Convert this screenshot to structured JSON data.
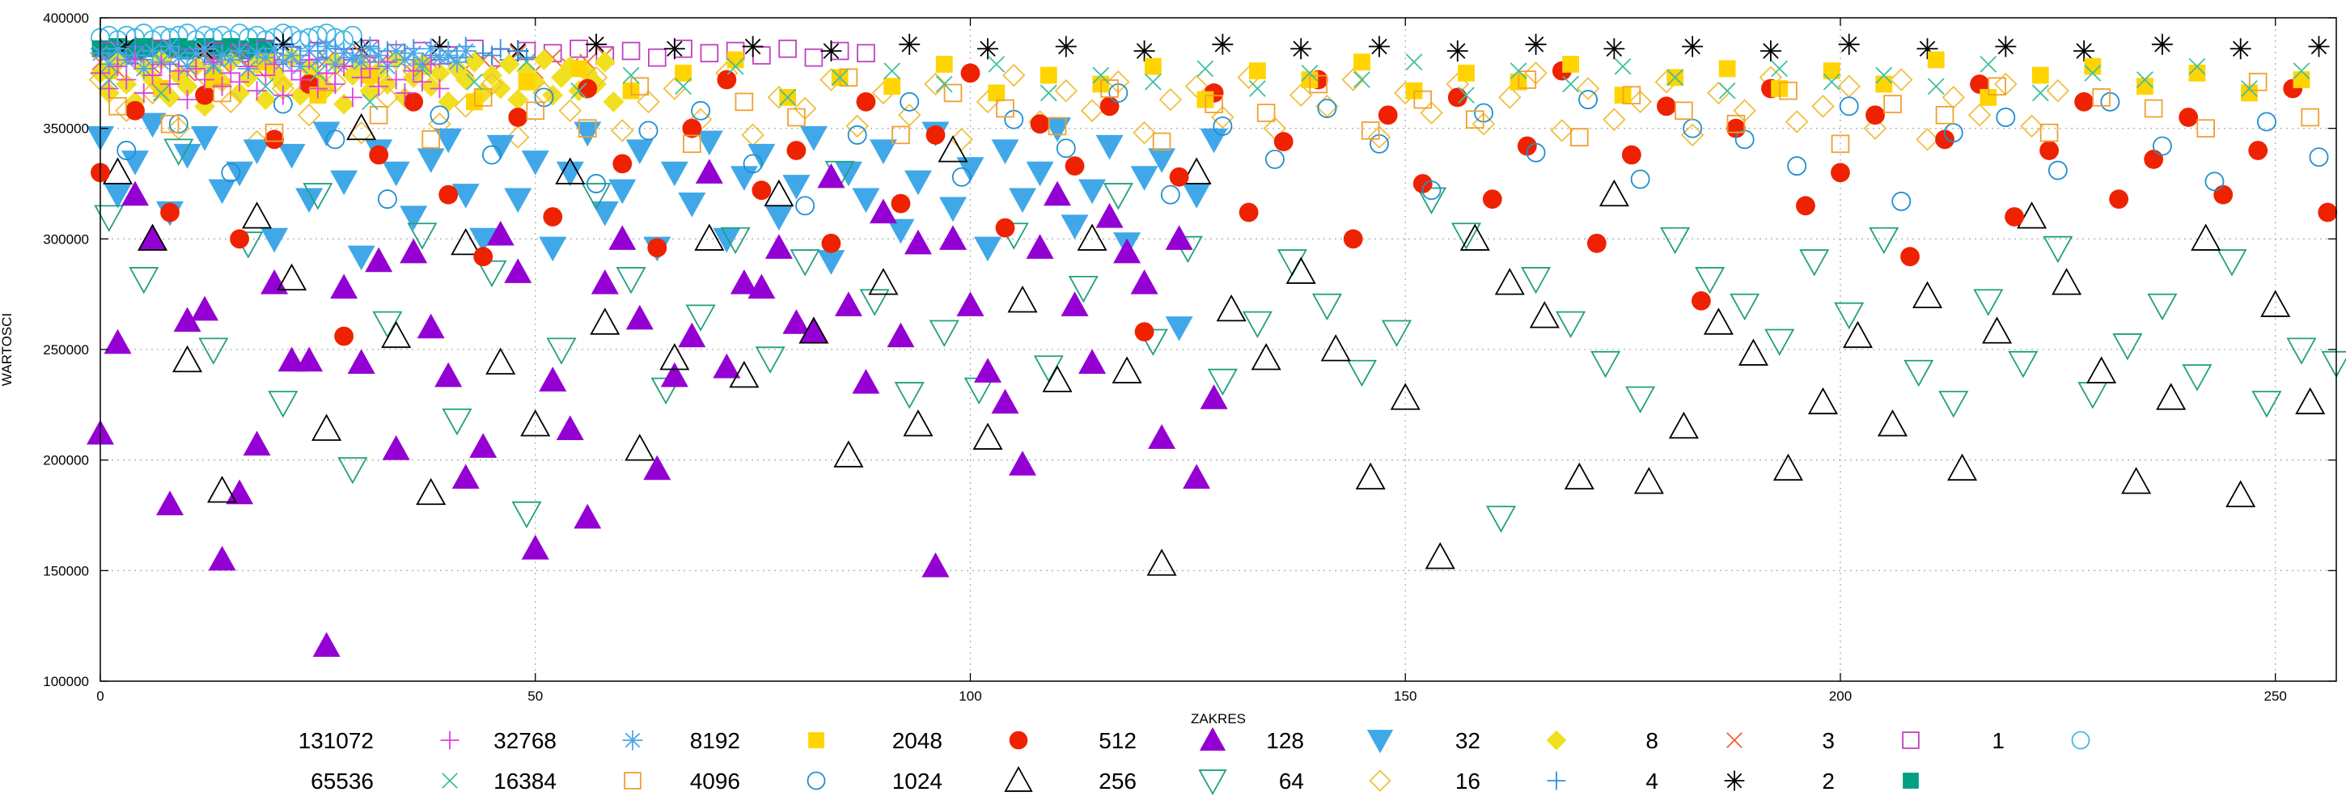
{
  "chart_data": {
    "type": "scatter",
    "xlabel": "ZAKRES",
    "ylabel": "WARTOSCI",
    "xlim": [
      0,
      257
    ],
    "ylim": [
      100000,
      400000
    ],
    "x_ticks": [
      0,
      50,
      100,
      150,
      200,
      250
    ],
    "y_ticks": [
      100000,
      150000,
      200000,
      250000,
      300000,
      350000,
      400000
    ],
    "grid": true,
    "legend_placement": "bottom",
    "series": [
      {
        "name": "131072",
        "marker": "plus",
        "color": "#e040e0",
        "x_start": 0,
        "x_step": 1,
        "values": [
          375000,
          368000,
          378000,
          372000,
          381000,
          366000,
          374000,
          379000,
          370000,
          376000,
          363000,
          377000,
          372000,
          380000,
          369000,
          375000,
          371000,
          378000,
          367000,
          374000,
          379000,
          365000,
          376000,
          372000,
          381000,
          368000,
          375000,
          370000,
          378000,
          364000,
          373000,
          377000,
          369000,
          380000,
          372000,
          366000,
          376000,
          371000,
          379000,
          368000
        ]
      },
      {
        "name": "65536",
        "marker": "cross",
        "color": "#40c0a0",
        "x_start": 1,
        "x_step": 6,
        "values": [
          372000,
          366000,
          378000,
          369000,
          375000,
          362000,
          377000,
          371000,
          380000,
          367000,
          374000,
          369000,
          378000,
          364000,
          373000,
          376000,
          370000,
          379000,
          366000,
          374000,
          371000,
          377000,
          368000,
          375000,
          372000,
          380000,
          365000,
          376000,
          370000,
          378000,
          373000,
          367000,
          377000,
          371000,
          374000,
          369000,
          379000,
          366000,
          375000,
          372000,
          378000,
          368000,
          376000
        ]
      },
      {
        "name": "32768",
        "marker": "star",
        "color": "#4aa8e8",
        "x_start": 0,
        "x_step": 1,
        "values": [
          384000,
          379000,
          386000,
          381000,
          383000,
          377000,
          385000,
          380000,
          387000,
          382000,
          378000,
          384000,
          386000,
          379000,
          383000,
          381000,
          385000,
          377000,
          384000,
          382000,
          386000,
          380000,
          383000,
          378000,
          385000,
          381000,
          387000,
          379000,
          384000,
          382000,
          380000,
          386000,
          383000,
          378000,
          385000,
          381000,
          384000,
          379000,
          386000,
          382000,
          383000,
          380000,
          385000
        ]
      },
      {
        "name": "16384",
        "marker": "square-open",
        "color": "#f0a030",
        "x_start": 2,
        "x_step": 6,
        "values": [
          360000,
          352000,
          366000,
          348000,
          371000,
          356000,
          345000,
          364000,
          358000,
          350000,
          369000,
          343000,
          362000,
          355000,
          373000,
          347000,
          366000,
          359000,
          351000,
          368000,
          344000,
          361000,
          357000,
          370000,
          349000,
          363000,
          354000,
          372000,
          346000,
          365000,
          358000,
          352000,
          367000,
          343000,
          361000,
          356000,
          369000,
          348000,
          364000,
          359000,
          350000,
          371000,
          355000
        ]
      },
      {
        "name": "8192",
        "marker": "square",
        "color": "#ffd400",
        "x_start": 1,
        "x_step": 6,
        "values": [
          376000,
          368000,
          372000,
          380000,
          365000,
          374000,
          378000,
          362000,
          371000,
          377000,
          367000,
          375000,
          381000,
          364000,
          373000,
          369000,
          379000,
          366000,
          374000,
          370000,
          378000,
          363000,
          376000,
          372000,
          380000,
          367000,
          375000,
          371000,
          379000,
          365000,
          373000,
          377000,
          368000,
          376000,
          370000,
          381000,
          364000,
          374000,
          378000,
          369000,
          375000,
          366000,
          372000
        ]
      },
      {
        "name": "4096",
        "marker": "circle-open",
        "color": "#1f8fd0",
        "x_start": 3,
        "x_step": 6,
        "values": [
          340000,
          352000,
          330000,
          361000,
          345000,
          318000,
          356000,
          338000,
          364000,
          325000,
          349000,
          358000,
          334000,
          315000,
          347000,
          362000,
          328000,
          354000,
          341000,
          366000,
          320000,
          351000,
          336000,
          359000,
          343000,
          322000,
          357000,
          339000,
          363000,
          327000,
          350000,
          345000,
          333000,
          360000,
          317000,
          348000,
          355000,
          331000,
          362000,
          342000,
          326000,
          353000,
          337000
        ]
      },
      {
        "name": "2048",
        "marker": "circle",
        "color": "#ee2200",
        "x_start": 0,
        "x_step": 4,
        "values": [
          330000,
          358000,
          312000,
          365000,
          300000,
          345000,
          370000,
          256000,
          338000,
          362000,
          320000,
          292000,
          355000,
          310000,
          368000,
          334000,
          296000,
          350000,
          372000,
          322000,
          340000,
          298000,
          362000,
          316000,
          347000,
          375000,
          305000,
          352000,
          333000,
          360000,
          258000,
          328000,
          366000,
          312000,
          344000,
          372000,
          300000,
          356000,
          325000,
          364000,
          318000,
          342000,
          376000,
          298000,
          338000,
          360000,
          272000,
          350000,
          368000,
          315000,
          330000,
          356000,
          292000,
          345000,
          370000,
          310000,
          340000,
          362000,
          318000,
          336000,
          355000,
          320000,
          340000,
          368000,
          312000
        ]
      },
      {
        "name": "1024",
        "marker": "triangle-up-open",
        "color": "#000000",
        "x_start": 2,
        "x_step": 4,
        "values": [
          330000,
          300000,
          245000,
          186000,
          310000,
          282000,
          214000,
          350000,
          256000,
          185000,
          298000,
          244000,
          216000,
          330000,
          262000,
          205000,
          246000,
          300000,
          238000,
          320000,
          258000,
          202000,
          280000,
          216000,
          340000,
          210000,
          272000,
          236000,
          300000,
          240000,
          153000,
          330000,
          268000,
          246000,
          285000,
          250000,
          192000,
          228000,
          156000,
          300000,
          280000,
          265000,
          192000,
          320000,
          190000,
          215000,
          262000,
          248000,
          196000,
          226000,
          256000,
          216000,
          274000,
          196000,
          258000,
          310000,
          280000,
          240000,
          190000,
          228000,
          300000,
          184000,
          270000,
          226000,
          258000
        ]
      },
      {
        "name": "512",
        "marker": "triangle-up",
        "color": "#9400d3",
        "x_start": 0,
        "x_step": 2,
        "values": [
          212000,
          253000,
          320000,
          300000,
          180000,
          263000,
          268000,
          155000,
          185000,
          207000,
          280000,
          245000,
          245000,
          116000,
          278000,
          244000,
          290000,
          205000,
          294000,
          260000,
          238000,
          192000,
          206000,
          302000,
          285000,
          160000,
          236000,
          214000,
          174000,
          280000,
          300000,
          264000,
          196000,
          238000,
          256000,
          330000,
          242000,
          280000,
          278000,
          296000,
          262000,
          258000,
          328000,
          270000,
          235000,
          312000,
          256000,
          298000,
          152000,
          300000,
          270000,
          240000,
          226000,
          198000,
          296000,
          320000,
          270000,
          244000,
          310000,
          294000,
          280000,
          210000,
          300000,
          192000,
          228000
        ]
      },
      {
        "name": "256",
        "marker": "triangle-down-open",
        "color": "#20a080",
        "x_start": 1,
        "x_step": 4,
        "values": [
          310000,
          282000,
          340000,
          250000,
          298000,
          226000,
          320000,
          196000,
          262000,
          302000,
          218000,
          285000,
          176000,
          250000,
          320000,
          282000,
          232000,
          265000,
          300000,
          246000,
          290000,
          330000,
          272000,
          230000,
          258000,
          232000,
          302000,
          242000,
          278000,
          320000,
          254000,
          296000,
          236000,
          262000,
          290000,
          270000,
          240000,
          258000,
          318000,
          302000,
          174000,
          282000,
          262000,
          244000,
          228000,
          300000,
          282000,
          270000,
          254000,
          290000,
          266000,
          300000,
          240000,
          226000,
          272000,
          244000,
          296000,
          230000,
          252000,
          270000,
          238000,
          290000,
          226000,
          250000,
          244000
        ]
      },
      {
        "name": "128",
        "marker": "triangle-down",
        "color": "#40a8e8",
        "x_start": 0,
        "x_step": 2,
        "values": [
          346000,
          320000,
          335000,
          352000,
          312000,
          338000,
          346000,
          322000,
          330000,
          340000,
          300000,
          338000,
          318000,
          348000,
          326000,
          292000,
          340000,
          330000,
          310000,
          336000,
          345000,
          320000,
          300000,
          342000,
          318000,
          335000,
          296000,
          330000,
          348000,
          312000,
          322000,
          340000,
          296000,
          330000,
          316000,
          344000,
          300000,
          328000,
          338000,
          310000,
          324000,
          346000,
          290000,
          330000,
          318000,
          340000,
          304000,
          326000,
          348000,
          314000,
          332000,
          296000,
          340000,
          318000,
          330000,
          350000,
          306000,
          322000,
          342000,
          298000,
          328000,
          336000,
          260000,
          320000,
          345000
        ]
      },
      {
        "name": "64",
        "marker": "diamond-open",
        "color": "#f0c040",
        "x_start": 0,
        "x_step": 3,
        "values": [
          372000,
          358000,
          366000,
          350000,
          374000,
          362000,
          344000,
          368000,
          356000,
          371000,
          348000,
          364000,
          376000,
          352000,
          360000,
          370000,
          346000,
          366000,
          358000,
          373000,
          349000,
          362000,
          368000,
          354000,
          375000,
          347000,
          364000,
          359000,
          372000,
          351000,
          366000,
          356000,
          370000,
          345000,
          362000,
          374000,
          353000,
          367000,
          358000,
          371000,
          348000,
          363000,
          369000,
          355000,
          373000,
          350000,
          365000,
          360000,
          372000,
          346000,
          366000,
          357000,
          370000,
          352000,
          364000,
          375000,
          349000,
          368000,
          354000,
          362000,
          371000,
          347000,
          366000,
          358000,
          373000,
          353000,
          360000,
          369000,
          350000,
          372000,
          345000,
          364000,
          356000,
          370000,
          351000,
          367000
        ]
      },
      {
        "name": "32",
        "marker": "diamond",
        "color": "#f0e020",
        "x_start": 0,
        "x_step": 1,
        "values": [
          375000,
          366000,
          380000,
          370000,
          362000,
          377000,
          372000,
          381000,
          364000,
          374000,
          369000,
          378000,
          360000,
          376000,
          371000,
          380000,
          366000,
          373000,
          379000,
          363000,
          375000,
          370000,
          382000,
          365000,
          377000,
          372000,
          368000,
          380000,
          361000,
          374000,
          378000,
          367000,
          376000,
          370000,
          381000,
          364000,
          373000,
          379000,
          369000,
          375000,
          362000,
          377000,
          372000,
          380000,
          366000,
          374000,
          368000,
          379000,
          363000,
          376000,
          371000,
          381000,
          365000,
          373000,
          378000,
          367000,
          375000,
          370000,
          380000,
          362000
        ]
      },
      {
        "name": "16",
        "marker": "plus",
        "color": "#3090e0",
        "x_start": 0,
        "x_step": 1,
        "values": [
          386000,
          382000,
          384000,
          380000,
          387000,
          383000,
          381000,
          385000,
          379000,
          386000,
          382000,
          384000,
          380000,
          387000,
          383000,
          381000,
          385000,
          382000,
          386000,
          379000,
          384000,
          381000,
          387000,
          383000,
          380000,
          385000,
          382000,
          386000,
          384000,
          381000,
          383000,
          387000,
          380000,
          385000,
          382000,
          384000,
          386000,
          379000,
          383000,
          381000,
          385000,
          382000,
          387000,
          380000,
          384000,
          383000,
          386000,
          381000,
          385000,
          382000
        ]
      },
      {
        "name": "8",
        "marker": "cross",
        "color": "#f06040",
        "x_start": 0,
        "x_step": 2,
        "values": [
          380000,
          376000,
          383000,
          378000,
          381000,
          375000,
          384000,
          379000,
          382000,
          377000,
          380000,
          383000,
          376000,
          381000,
          378000,
          384000,
          379000,
          382000,
          375000,
          380000,
          383000,
          377000,
          381000,
          379000,
          384000,
          376000,
          382000,
          378000,
          380000,
          383000
        ]
      },
      {
        "name": "4",
        "marker": "star",
        "color": "#000000",
        "x_start": 3,
        "x_step": 9,
        "values": [
          387000,
          385000,
          388000,
          386000,
          387000,
          385000,
          388000,
          386000,
          387000,
          385000,
          388000,
          386000,
          387000,
          385000,
          388000,
          386000,
          387000,
          385000,
          388000,
          386000,
          387000,
          385000,
          388000,
          386000,
          387000,
          385000,
          388000,
          386000,
          387000
        ]
      },
      {
        "name": "3",
        "marker": "square-open",
        "color": "#c040c0",
        "x_start": 1,
        "x_step": 3,
        "values": [
          385000,
          383000,
          386000,
          382000,
          385000,
          384000,
          386000,
          383000,
          385000,
          382000,
          386000,
          384000,
          385000,
          383000,
          386000,
          382000,
          385000,
          384000,
          386000,
          383000,
          385000,
          382000,
          386000,
          384000,
          385000,
          383000,
          386000,
          382000,
          385000,
          384000
        ]
      },
      {
        "name": "2",
        "marker": "square",
        "color": "#00a080",
        "x_start": 0,
        "x_step": 1,
        "values": [
          386000,
          385000,
          387000,
          386000,
          385000,
          387000,
          386000,
          385000,
          386000,
          387000,
          385000,
          386000,
          387000,
          385000,
          386000,
          387000,
          386000,
          385000,
          387000,
          386000
        ]
      },
      {
        "name": "1",
        "marker": "circle-open",
        "color": "#40b8e8",
        "x_start": 0,
        "x_step": 1,
        "values": [
          391000,
          392000,
          390000,
          392000,
          391000,
          393000,
          390000,
          392000,
          391000,
          392000,
          393000,
          390000,
          392000,
          391000,
          392000,
          390000,
          393000,
          391000,
          392000,
          390000,
          391000,
          393000,
          392000,
          390000,
          391000,
          392000,
          393000,
          391000,
          390000,
          392000
        ]
      }
    ]
  }
}
